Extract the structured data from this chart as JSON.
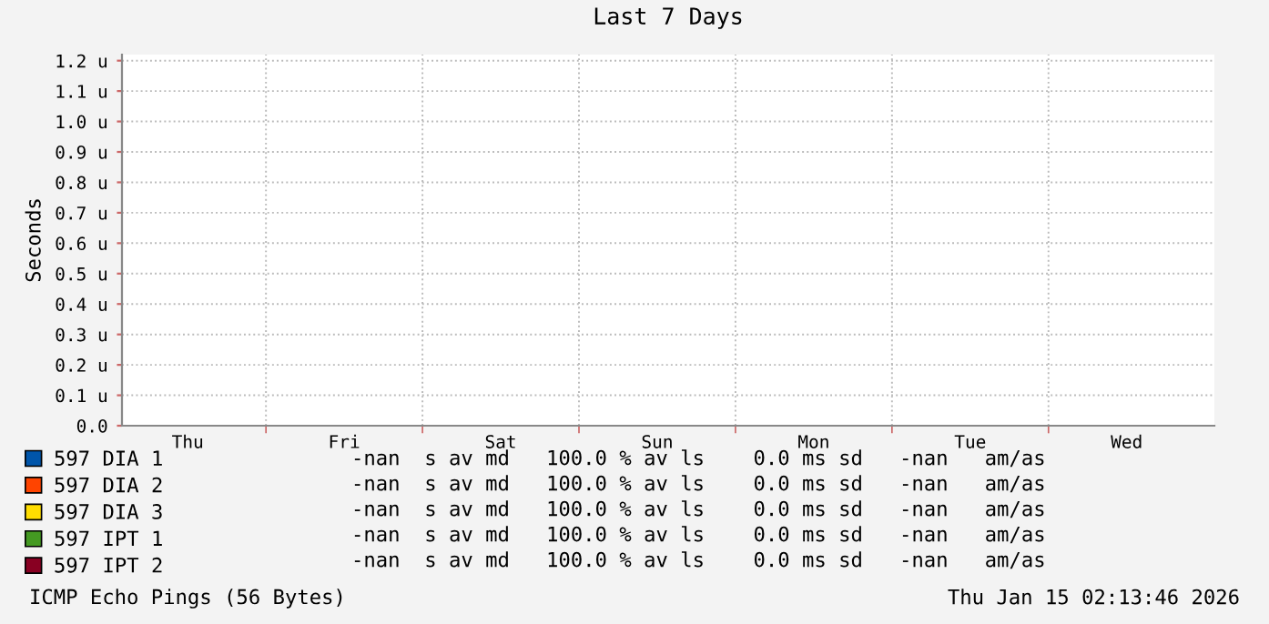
{
  "chart_data": {
    "type": "line",
    "title": "Last 7 Days",
    "ylabel": "Seconds",
    "categories": [
      "Thu",
      "Fri",
      "Sat",
      "Sun",
      "Mon",
      "Tue",
      "Wed"
    ],
    "series": [
      {
        "name": "597 DIA 1",
        "color": "#0055aa",
        "values": [
          null,
          null,
          null,
          null,
          null,
          null,
          null
        ]
      },
      {
        "name": "597 DIA 2",
        "color": "#ff4400",
        "values": [
          null,
          null,
          null,
          null,
          null,
          null,
          null
        ]
      },
      {
        "name": "597 DIA 3",
        "color": "#ffdd00",
        "values": [
          null,
          null,
          null,
          null,
          null,
          null,
          null
        ]
      },
      {
        "name": "597 IPT 1",
        "color": "#449922",
        "values": [
          null,
          null,
          null,
          null,
          null,
          null,
          null
        ]
      },
      {
        "name": "597 IPT 2",
        "color": "#880022",
        "values": [
          null,
          null,
          null,
          null,
          null,
          null,
          null
        ]
      }
    ],
    "ylim": [
      0,
      1.22
    ],
    "yticks": [
      {
        "value": 0,
        "label": "0.0"
      },
      {
        "value": 0.1,
        "label": "0.1 u"
      },
      {
        "value": 0.2,
        "label": "0.2 u"
      },
      {
        "value": 0.3,
        "label": "0.3 u"
      },
      {
        "value": 0.4,
        "label": "0.4 u"
      },
      {
        "value": 0.5,
        "label": "0.5 u"
      },
      {
        "value": 0.6,
        "label": "0.6 u"
      },
      {
        "value": 0.7,
        "label": "0.7 u"
      },
      {
        "value": 0.8,
        "label": "0.8 u"
      },
      {
        "value": 0.9,
        "label": "0.9 u"
      },
      {
        "value": 1.0,
        "label": "1.0 u"
      },
      {
        "value": 1.1,
        "label": "1.1 u"
      },
      {
        "value": 1.2,
        "label": "1.2 u"
      }
    ],
    "grid": true,
    "legend": "bottom",
    "annotations": [
      "-nan  s av md   100.0 % av ls    0.0 ms sd   -nan   am/as",
      "-nan  s av md   100.0 % av ls    0.0 ms sd   -nan   am/as",
      "-nan  s av md   100.0 % av ls    0.0 ms sd   -nan   am/as",
      "-nan  s av md   100.0 % av ls    0.0 ms sd   -nan   am/as",
      "-nan  s av md   100.0 % av ls    0.0 ms sd   -nan   am/as",
      "ICMP Echo Pings (56 Bytes)",
      "Thu Jan 15 02:13:46 2026"
    ]
  }
}
